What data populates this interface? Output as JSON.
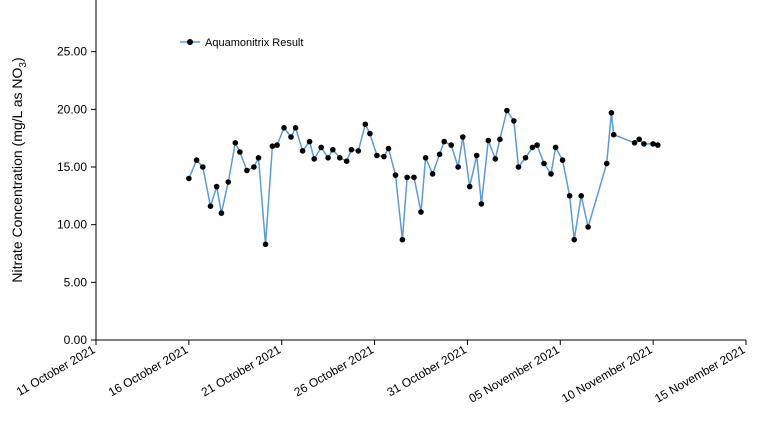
{
  "chart_data": {
    "type": "line",
    "ylabel_main": "Nitrate Concentration (mg/L as NO",
    "ylabel_sub": "3",
    "ylabel_close": ")",
    "xlabel": "",
    "ylim": [
      0,
      30
    ],
    "yticks": [
      "0.00",
      "5.00",
      "10.00",
      "15.00",
      "20.00",
      "25.00"
    ],
    "ytick_values": [
      0,
      5,
      10,
      15,
      20,
      25
    ],
    "xlim": [
      "2021-10-11",
      "2021-11-15"
    ],
    "xticks": [
      "11 October 2021",
      "16 October 2021",
      "21 October 2021",
      "26 October 2021",
      "31 October 2021",
      "05 November 2021",
      "10 November 2021",
      "15 November 2021"
    ],
    "xtick_values": [
      "2021-10-11",
      "2021-10-16",
      "2021-10-21",
      "2021-10-26",
      "2021-10-31",
      "2021-11-05",
      "2021-11-10",
      "2021-11-15"
    ],
    "legend": {
      "position": "top-left"
    },
    "grid": false,
    "colors": {
      "line": "#5b9bd5",
      "marker": "#000000"
    },
    "series": [
      {
        "name": "Aquamonitrix Result",
        "points": [
          [
            "2021-10-16 00:00",
            14.0
          ],
          [
            "2021-10-16 10:00",
            15.6
          ],
          [
            "2021-10-16 18:00",
            15.0
          ],
          [
            "2021-10-17 04:00",
            11.6
          ],
          [
            "2021-10-17 12:00",
            13.3
          ],
          [
            "2021-10-17 18:00",
            11.0
          ],
          [
            "2021-10-18 03:00",
            13.7
          ],
          [
            "2021-10-18 12:00",
            17.1
          ],
          [
            "2021-10-18 18:00",
            16.3
          ],
          [
            "2021-10-19 03:00",
            14.7
          ],
          [
            "2021-10-19 12:00",
            15.0
          ],
          [
            "2021-10-19 18:00",
            15.8
          ],
          [
            "2021-10-20 03:00",
            8.3
          ],
          [
            "2021-10-20 12:00",
            16.8
          ],
          [
            "2021-10-20 18:00",
            16.9
          ],
          [
            "2021-10-21 03:00",
            18.4
          ],
          [
            "2021-10-21 12:00",
            17.6
          ],
          [
            "2021-10-21 18:00",
            18.4
          ],
          [
            "2021-10-22 03:00",
            16.4
          ],
          [
            "2021-10-22 12:00",
            17.2
          ],
          [
            "2021-10-22 18:00",
            15.7
          ],
          [
            "2021-10-23 03:00",
            16.7
          ],
          [
            "2021-10-23 12:00",
            15.8
          ],
          [
            "2021-10-23 18:00",
            16.5
          ],
          [
            "2021-10-24 03:00",
            15.8
          ],
          [
            "2021-10-24 12:00",
            15.5
          ],
          [
            "2021-10-24 18:00",
            16.5
          ],
          [
            "2021-10-25 03:00",
            16.4
          ],
          [
            "2021-10-25 12:00",
            18.7
          ],
          [
            "2021-10-25 18:00",
            17.9
          ],
          [
            "2021-10-26 03:00",
            16.0
          ],
          [
            "2021-10-26 12:00",
            15.9
          ],
          [
            "2021-10-26 18:00",
            16.6
          ],
          [
            "2021-10-27 03:00",
            14.3
          ],
          [
            "2021-10-27 12:00",
            8.7
          ],
          [
            "2021-10-27 18:00",
            14.1
          ],
          [
            "2021-10-28 03:00",
            14.1
          ],
          [
            "2021-10-28 12:00",
            11.1
          ],
          [
            "2021-10-28 18:00",
            15.8
          ],
          [
            "2021-10-29 03:00",
            14.4
          ],
          [
            "2021-10-29 12:00",
            16.1
          ],
          [
            "2021-10-29 18:00",
            17.2
          ],
          [
            "2021-10-30 03:00",
            16.9
          ],
          [
            "2021-10-30 12:00",
            15.0
          ],
          [
            "2021-10-30 18:00",
            17.6
          ],
          [
            "2021-10-31 03:00",
            13.3
          ],
          [
            "2021-10-31 12:00",
            16.0
          ],
          [
            "2021-10-31 18:00",
            11.8
          ],
          [
            "2021-11-01 03:00",
            17.3
          ],
          [
            "2021-11-01 12:00",
            15.7
          ],
          [
            "2021-11-01 18:00",
            17.4
          ],
          [
            "2021-11-02 03:00",
            19.9
          ],
          [
            "2021-11-02 12:00",
            19.0
          ],
          [
            "2021-11-02 18:00",
            15.0
          ],
          [
            "2021-11-03 03:00",
            15.8
          ],
          [
            "2021-11-03 12:00",
            16.7
          ],
          [
            "2021-11-03 18:00",
            16.9
          ],
          [
            "2021-11-04 03:00",
            15.3
          ],
          [
            "2021-11-04 12:00",
            14.4
          ],
          [
            "2021-11-04 18:00",
            16.7
          ],
          [
            "2021-11-05 03:00",
            15.6
          ],
          [
            "2021-11-05 12:00",
            12.5
          ],
          [
            "2021-11-05 18:00",
            8.7
          ],
          [
            "2021-11-06 03:00",
            12.5
          ],
          [
            "2021-11-06 12:00",
            9.8
          ],
          [
            "2021-11-07 12:00",
            15.3
          ],
          [
            "2021-11-07 18:00",
            19.7
          ],
          [
            "2021-11-07 21:00",
            17.8
          ],
          [
            "2021-11-09 00:00",
            17.1
          ],
          [
            "2021-11-09 06:00",
            17.4
          ],
          [
            "2021-11-09 12:00",
            17.0
          ],
          [
            "2021-11-10 00:00",
            17.0
          ],
          [
            "2021-11-10 06:00",
            16.9
          ]
        ]
      }
    ]
  }
}
